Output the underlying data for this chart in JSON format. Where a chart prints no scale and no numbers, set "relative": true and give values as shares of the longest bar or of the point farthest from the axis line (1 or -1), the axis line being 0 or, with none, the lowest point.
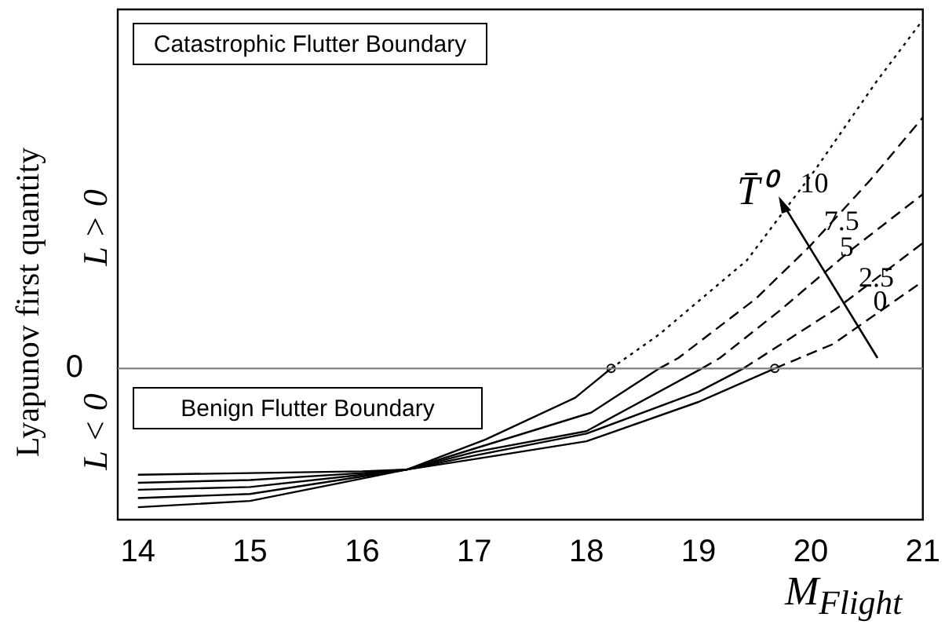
{
  "chart_data": {
    "type": "line",
    "relative": true,
    "xlabel": "M$_{Flight}$",
    "ylabel": "Lyapunov first quantity",
    "legend_title": "T̄⁰",
    "annotations": [
      "Catastrophic Flutter Boundary",
      "Benign Flutter Boundary",
      "L > 0",
      "L < 0"
    ],
    "xlim": [
      13.82,
      21
    ],
    "xticks": [
      14,
      15,
      16,
      17,
      18,
      19,
      20,
      21
    ],
    "grid": false,
    "marker": "none",
    "ref_lines": [
      {
        "axis": "y",
        "value": 0,
        "label": "0",
        "color": "#808080"
      }
    ],
    "series": [
      {
        "name": "10",
        "color": "#000000",
        "line_style": "dotted",
        "x": [
          14,
          15,
          16,
          16.4,
          17.1,
          17.9,
          18.22,
          18.65,
          19.43,
          20.04,
          20.58,
          21
        ],
        "values": [
          -0.398,
          -0.38,
          -0.316,
          -0.29,
          -0.204,
          -0.084,
          0,
          0.098,
          0.31,
          0.57,
          0.82,
          1
        ]
      },
      {
        "name": "7.5",
        "color": "#000000",
        "line_style": "dashed",
        "x": [
          14,
          15,
          16,
          16.4,
          17,
          18.04,
          18.65,
          18.82,
          19.51,
          19.99,
          20.53,
          21
        ],
        "values": [
          -0.372,
          -0.36,
          -0.31,
          -0.29,
          -0.23,
          -0.127,
          0,
          0.03,
          0.2,
          0.35,
          0.54,
          0.72
        ]
      },
      {
        "name": "5",
        "color": "#000000",
        "line_style": "dashed",
        "x": [
          14,
          15,
          16,
          16.4,
          17,
          18,
          19.03,
          19.19,
          19.72,
          20.36,
          21
        ],
        "values": [
          -0.348,
          -0.34,
          -0.305,
          -0.29,
          -0.24,
          -0.18,
          0,
          0.03,
          0.165,
          0.34,
          0.5
        ]
      },
      {
        "name": "2.5",
        "color": "#000000",
        "line_style": "dashed",
        "x": [
          14,
          15,
          16,
          16.4,
          17,
          18,
          19,
          19.4,
          20.24,
          21
        ],
        "values": [
          -0.328,
          -0.32,
          -0.3,
          -0.29,
          -0.25,
          -0.187,
          -0.067,
          0,
          0.174,
          0.36
        ]
      },
      {
        "name": "0",
        "color": "#000000",
        "line_style": "dashed",
        "x": [
          14,
          15,
          16,
          16.4,
          17,
          18,
          19,
          19.68,
          20.2,
          21
        ],
        "values": [
          -0.305,
          -0.3,
          -0.295,
          -0.29,
          -0.26,
          -0.209,
          -0.096,
          0,
          0.07,
          0.25
        ]
      },
      {
        "type": "scatter",
        "color": "#000000",
        "marker": "circle",
        "x": [
          18.22,
          19.68
        ],
        "values": [
          0,
          0
        ]
      }
    ]
  }
}
